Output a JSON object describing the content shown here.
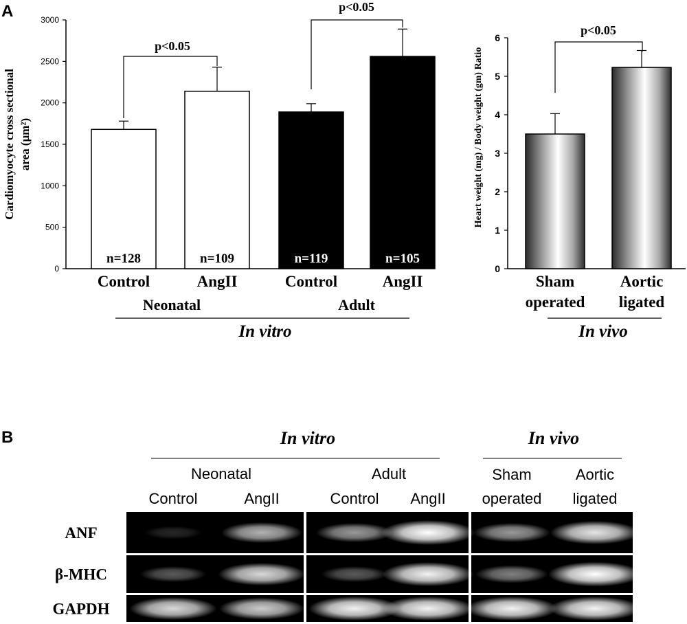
{
  "panel_a": {
    "letter": "A",
    "left_chart": {
      "ylabel_line1": "Cardiomyocyte cross sectional",
      "ylabel_line2": "area (µm²)",
      "group_neonatal": "Neonatal",
      "group_adult": "Adult",
      "section_label": "In vitro",
      "sig_neonatal": "p<0.05",
      "sig_adult": "p<0.05"
    },
    "right_chart": {
      "ylabel": "Heart weight (mg) / Body weight (gm) Ratio",
      "section_label": "In vivo",
      "sig": "p<0.05"
    }
  },
  "chart_data": [
    {
      "type": "bar",
      "categories": [
        "Control",
        "AngII",
        "Control",
        "AngII"
      ],
      "groups": [
        "Neonatal",
        "Neonatal",
        "Adult",
        "Adult"
      ],
      "values": [
        1680,
        2140,
        1890,
        2560
      ],
      "errors": [
        100,
        290,
        100,
        330
      ],
      "n_labels": [
        "n=128",
        "n=109",
        "n=119",
        "n=105"
      ],
      "colors": [
        "#ffffff",
        "#ffffff",
        "#000000",
        "#000000"
      ],
      "ylabel": "Cardiomyocyte cross sectional area (µm²)",
      "ylim": [
        0,
        3000
      ],
      "yticks": [
        0,
        500,
        1000,
        1500,
        2000,
        2500,
        3000
      ],
      "grid": false
    },
    {
      "type": "bar",
      "categories": [
        "Sham operated",
        "Aortic ligated"
      ],
      "category_lines": [
        [
          "Sham",
          "operated"
        ],
        [
          "Aortic",
          "ligated"
        ]
      ],
      "values": [
        3.5,
        5.23
      ],
      "errors": [
        0.53,
        0.44
      ],
      "ylabel": "Heart weight (mg) / Body weight (gm) Ratio",
      "ylim": [
        0,
        6
      ],
      "yticks": [
        0,
        1,
        2,
        3,
        4,
        5,
        6
      ],
      "grid": false
    }
  ],
  "panel_b": {
    "letter": "B",
    "in_vitro_label": "In vitro",
    "in_vivo_label": "In vivo",
    "neonatal_label": "Neonatal",
    "adult_label": "Adult",
    "lanes": [
      {
        "line1": "Control",
        "line2": ""
      },
      {
        "line1": "AngII",
        "line2": ""
      },
      {
        "line1": "Control",
        "line2": ""
      },
      {
        "line1": "AngII",
        "line2": ""
      },
      {
        "line1": "Sham",
        "line2": "operated"
      },
      {
        "line1": "Aortic",
        "line2": "ligated"
      }
    ],
    "rows": [
      {
        "label": "ANF",
        "intensity": [
          0.15,
          0.7,
          0.6,
          1.0,
          0.6,
          0.9
        ]
      },
      {
        "label": "β-MHC",
        "intensity": [
          0.35,
          0.85,
          0.35,
          0.95,
          0.5,
          1.0
        ]
      },
      {
        "label": "GAPDH",
        "intensity": [
          0.85,
          0.8,
          0.95,
          0.95,
          0.95,
          0.95
        ]
      }
    ]
  }
}
